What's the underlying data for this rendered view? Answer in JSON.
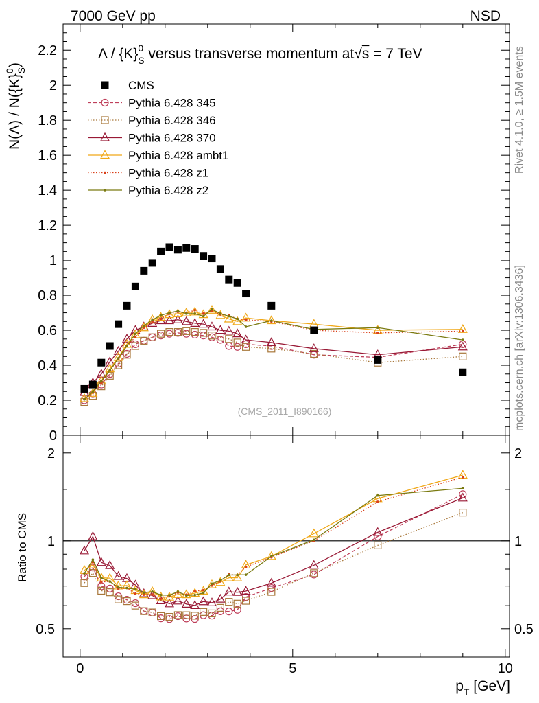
{
  "header": {
    "left_label": "7000 GeV pp",
    "right_label": "NSD"
  },
  "side_labels": {
    "rivet": "Rivet 4.1.0, ≥ 1.5M events",
    "mcplots": "mcplots.cern.ch [arXiv:1306.3436]"
  },
  "watermark": "(CMS_2011_I890166)",
  "chart_data": {
    "type": "scatter",
    "title": "Λ / {K}⁰S versus transverse momentum at √s = 7 TeV",
    "title_parts": {
      "prefix": "Λ / {K}",
      "sup": "0",
      "sub": "S",
      "middle": " versus transverse momentum at",
      "sqrt_sign": "√",
      "sqrt_arg": "s",
      "suffix": " = 7 TeV"
    },
    "ylabel_parts": {
      "part1": "N(Λ)  /  N({K}",
      "sup": "0",
      "sub": "S",
      "close": ")"
    },
    "ratio_ylabel": "Ratio to CMS",
    "xlabel_parts": {
      "p": "p",
      "sub": "T",
      "rest": " [GeV]"
    },
    "xlim": [
      -0.4,
      10.1
    ],
    "ylim": [
      0,
      2.35
    ],
    "ratio_ylim": [
      0.4,
      2.3
    ],
    "x_ticks": [
      0,
      5,
      10
    ],
    "x_tick_labels": [
      "0",
      "5",
      "10"
    ],
    "y_ticks": [
      0,
      0.2,
      0.4,
      0.6,
      0.8,
      1,
      1.2,
      1.4,
      1.6,
      1.8,
      2,
      2.2
    ],
    "y_tick_labels": [
      "0",
      "0.2",
      "0.4",
      "0.6",
      "0.8",
      "1",
      "1.2",
      "1.4",
      "1.6",
      "1.8",
      "2",
      "2.2"
    ],
    "ratio_ticks": [
      0.5,
      1,
      2
    ],
    "ratio_tick_labels": [
      "0.5",
      "1",
      "2"
    ],
    "legend_position": "top-left",
    "x": [
      0.1,
      0.3,
      0.5,
      0.7,
      0.9,
      1.1,
      1.3,
      1.5,
      1.7,
      1.9,
      2.1,
      2.3,
      2.5,
      2.7,
      2.9,
      3.1,
      3.3,
      3.5,
      3.7,
      3.9,
      4.5,
      5.5,
      7.0,
      9.0
    ],
    "series": [
      {
        "name": "CMS",
        "marker": "square-filled",
        "line": "none",
        "color": "#000000",
        "values": [
          0.265,
          0.29,
          0.415,
          0.51,
          0.635,
          0.74,
          0.85,
          0.94,
          0.985,
          1.05,
          1.075,
          1.06,
          1.07,
          1.065,
          1.025,
          1.01,
          0.95,
          0.89,
          0.87,
          0.81,
          0.74,
          0.6,
          0.43,
          0.36
        ]
      },
      {
        "name": "Pythia 6.428 345",
        "marker": "circle-open",
        "line": "dashed",
        "color": "#bf3f5a",
        "values": [
          0.2,
          0.235,
          0.29,
          0.35,
          0.41,
          0.465,
          0.52,
          0.54,
          0.56,
          0.57,
          0.58,
          0.585,
          0.58,
          0.575,
          0.57,
          0.56,
          0.545,
          0.51,
          0.505,
          0.52,
          0.51,
          0.46,
          0.445,
          0.52
        ]
      },
      {
        "name": "Pythia 6.428 346",
        "marker": "square-open",
        "line": "dotted",
        "color": "#a8773a",
        "values": [
          0.19,
          0.225,
          0.28,
          0.34,
          0.4,
          0.46,
          0.51,
          0.54,
          0.56,
          0.58,
          0.59,
          0.59,
          0.595,
          0.59,
          0.585,
          0.57,
          0.56,
          0.55,
          0.53,
          0.505,
          0.495,
          0.465,
          0.415,
          0.45
        ]
      },
      {
        "name": "Pythia 6.428 370",
        "marker": "triangle-open",
        "line": "solid",
        "color": "#991a36",
        "values": [
          0.245,
          0.3,
          0.35,
          0.42,
          0.48,
          0.55,
          0.6,
          0.62,
          0.64,
          0.655,
          0.655,
          0.66,
          0.65,
          0.64,
          0.635,
          0.62,
          0.6,
          0.595,
          0.58,
          0.545,
          0.53,
          0.495,
          0.46,
          0.505
        ]
      },
      {
        "name": "Pythia 6.428 ambt1",
        "marker": "triangle-open",
        "line": "solid",
        "color": "#f0a818",
        "values": [
          0.21,
          0.24,
          0.31,
          0.38,
          0.445,
          0.52,
          0.575,
          0.615,
          0.66,
          0.675,
          0.69,
          0.695,
          0.7,
          0.705,
          0.69,
          0.715,
          0.685,
          0.665,
          0.65,
          0.67,
          0.655,
          0.635,
          0.6,
          0.605
        ]
      },
      {
        "name": "Pythia 6.428 z1",
        "marker": "dot",
        "line": "dotted",
        "color": "#d9401a",
        "values": [
          0.205,
          0.245,
          0.3,
          0.37,
          0.435,
          0.51,
          0.56,
          0.615,
          0.645,
          0.665,
          0.695,
          0.705,
          0.7,
          0.715,
          0.695,
          0.71,
          0.69,
          0.685,
          0.665,
          0.66,
          0.65,
          0.6,
          0.585,
          0.595
        ]
      },
      {
        "name": "Pythia 6.428 z2",
        "marker": "dot",
        "line": "solid",
        "color": "#7a7a10",
        "values": [
          0.205,
          0.25,
          0.31,
          0.37,
          0.44,
          0.51,
          0.58,
          0.625,
          0.66,
          0.685,
          0.7,
          0.71,
          0.695,
          0.695,
          0.68,
          0.72,
          0.695,
          0.68,
          0.665,
          0.62,
          0.655,
          0.605,
          0.615,
          0.545
        ]
      }
    ]
  }
}
